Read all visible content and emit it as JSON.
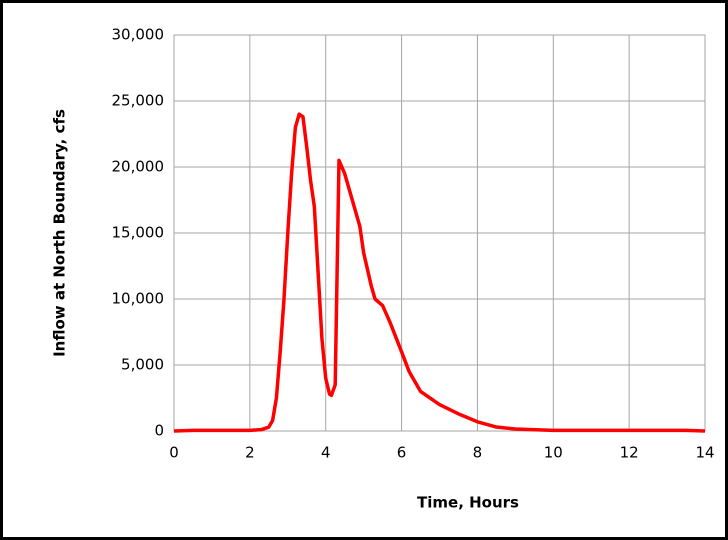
{
  "chart_data": {
    "type": "line",
    "xlabel": "Time, Hours",
    "ylabel": "Inflow at North Boundary, cfs",
    "x": [
      0,
      0.5,
      1,
      2,
      2.3,
      2.5,
      2.6,
      2.7,
      2.8,
      2.9,
      3.0,
      3.1,
      3.2,
      3.3,
      3.4,
      3.5,
      3.6,
      3.7,
      3.8,
      3.9,
      4.0,
      4.1,
      4.15,
      4.25,
      4.3,
      4.35,
      4.5,
      4.7,
      4.9,
      5.0,
      5.2,
      5.3,
      5.5,
      5.7,
      6.0,
      6.2,
      6.5,
      7,
      7.5,
      8,
      8.5,
      9,
      10,
      12,
      13.5,
      14
    ],
    "series": [
      {
        "name": "Inflow",
        "color": "#ff0000",
        "values": [
          0,
          50,
          50,
          50,
          100,
          300,
          800,
          2500,
          6000,
          10000,
          15000,
          19500,
          23000,
          24000,
          23800,
          21500,
          19000,
          17000,
          12000,
          7000,
          4000,
          2800,
          2700,
          3500,
          12000,
          20500,
          19500,
          17500,
          15500,
          13500,
          11000,
          10000,
          9500,
          8200,
          6000,
          4500,
          3000,
          2000,
          1300,
          700,
          300,
          150,
          50,
          50,
          50,
          0
        ]
      }
    ],
    "xlim": [
      0,
      14
    ],
    "xticks": [
      0,
      2,
      4,
      6,
      8,
      10,
      12,
      14
    ],
    "ylim": [
      0,
      30000
    ],
    "yticks": [
      0,
      {
        "value": 5000,
        "label": "5,000"
      },
      {
        "value": 10000,
        "label": "10,000"
      },
      {
        "value": 15000,
        "label": "15,000"
      },
      {
        "value": 20000,
        "label": "20,000"
      },
      {
        "value": 25000,
        "label": "25,000"
      },
      {
        "value": 30000,
        "label": "30,000"
      }
    ],
    "grid": true
  }
}
